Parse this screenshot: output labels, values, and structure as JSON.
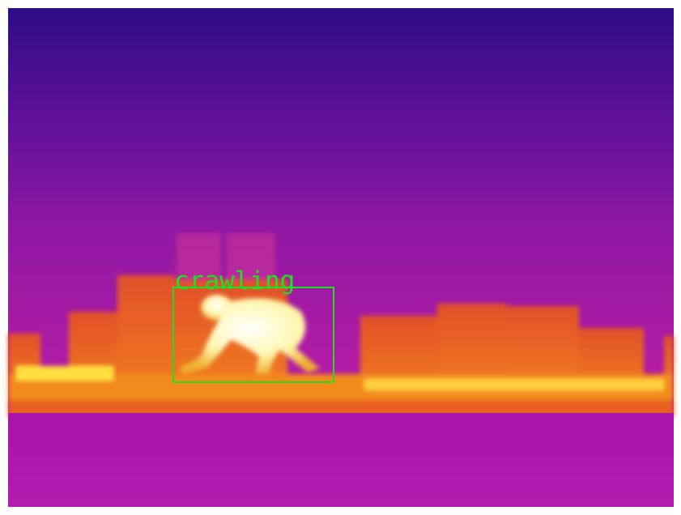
{
  "detection": {
    "label": "crawling"
  }
}
